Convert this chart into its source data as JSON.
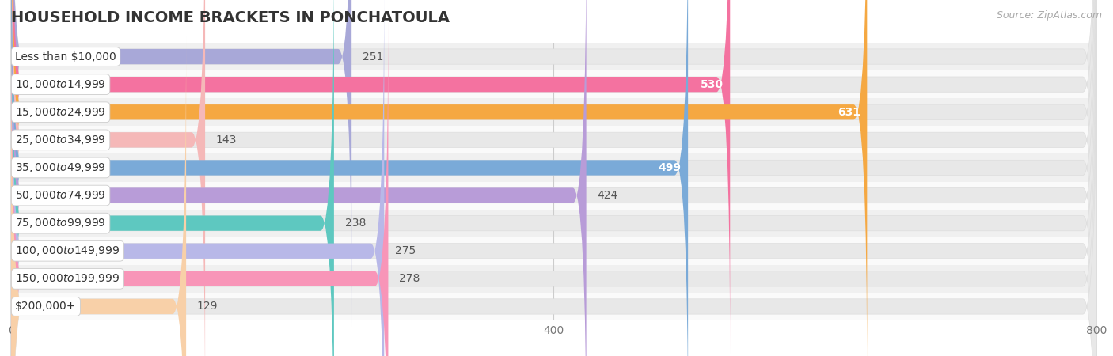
{
  "title": "HOUSEHOLD INCOME BRACKETS IN PONCHATOULA",
  "source": "Source: ZipAtlas.com",
  "categories": [
    "Less than $10,000",
    "$10,000 to $14,999",
    "$15,000 to $24,999",
    "$25,000 to $34,999",
    "$35,000 to $49,999",
    "$50,000 to $74,999",
    "$75,000 to $99,999",
    "$100,000 to $149,999",
    "$150,000 to $199,999",
    "$200,000+"
  ],
  "values": [
    251,
    530,
    631,
    143,
    499,
    424,
    238,
    275,
    278,
    129
  ],
  "bar_colors": [
    "#a8a8d8",
    "#f472a0",
    "#f5a842",
    "#f5b8b8",
    "#7aaad8",
    "#b89cd8",
    "#5ec8c0",
    "#b8b8e8",
    "#f895b8",
    "#f8d0a8"
  ],
  "dot_colors": [
    "#8888c0",
    "#e8508a",
    "#e09030",
    "#e89898",
    "#5a90c8",
    "#9878c0",
    "#3ab0a8",
    "#9898d8",
    "#e870a0",
    "#e8b888"
  ],
  "xlim": [
    0,
    800
  ],
  "xticks": [
    0,
    400,
    800
  ],
  "inside_label_indices": [
    1,
    2,
    4
  ],
  "background_color": "#ffffff",
  "row_bg_even": "#f0f0f0",
  "row_bg_odd": "#fafafa",
  "bar_bg_color": "#e8e8e8",
  "title_fontsize": 14,
  "source_fontsize": 9,
  "label_fontsize": 10,
  "bar_height": 0.55,
  "value_label_color_dark": "#555555",
  "value_label_color_light": "#ffffff"
}
